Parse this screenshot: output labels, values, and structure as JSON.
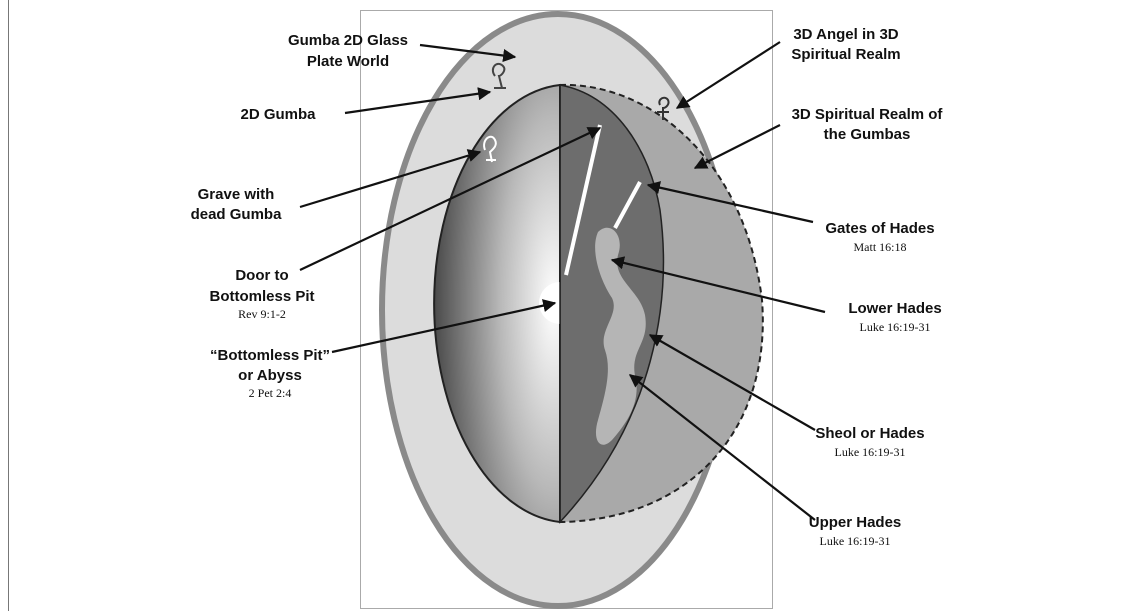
{
  "labels": [
    {
      "lines": [
        "Gumba 2D Glass",
        "Plate World"
      ]
    },
    {
      "lines": [
        "2D Gumba"
      ]
    },
    {
      "lines": [
        "Grave with",
        "dead Gumba"
      ]
    },
    {
      "lines": [
        "Door to",
        "Bottomless Pit"
      ],
      "reference": "Rev 9:1-2"
    },
    {
      "lines": [
        "“Bottomless Pit”",
        "or Abyss"
      ],
      "reference": "2 Pet 2:4"
    },
    {
      "lines": [
        "3D Angel in 3D",
        "Spiritual Realm"
      ]
    },
    {
      "lines": [
        "3D Spiritual Realm of",
        "the Gumbas"
      ]
    },
    {
      "lines": [
        "Gates of Hades"
      ],
      "reference": "Matt 16:18"
    },
    {
      "lines": [
        "Lower Hades"
      ],
      "reference": "Luke 16:19-31"
    },
    {
      "lines": [
        "Sheol or Hades"
      ],
      "reference": "Luke 16:19-31"
    },
    {
      "lines": [
        "Upper Hades"
      ],
      "reference": "Luke 16:19-31"
    }
  ]
}
